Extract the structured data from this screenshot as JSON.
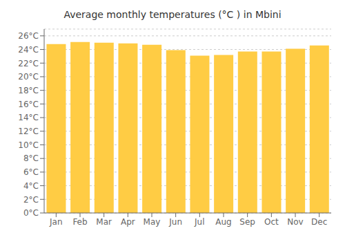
{
  "chart_data": {
    "type": "bar",
    "title": "Average monthly temperatures (°C ) in Mbini",
    "categories": [
      "Jan",
      "Feb",
      "Mar",
      "Apr",
      "May",
      "Jun",
      "Jul",
      "Aug",
      "Sep",
      "Oct",
      "Nov",
      "Dec"
    ],
    "values": [
      24.8,
      25.1,
      25.0,
      24.9,
      24.7,
      23.9,
      23.1,
      23.2,
      23.7,
      23.7,
      24.1,
      24.6
    ],
    "color": "#FFCC44",
    "ylim": [
      0,
      27
    ],
    "yticks": [
      {
        "value": 0,
        "label": "0°C"
      },
      {
        "value": 2,
        "label": "2°C"
      },
      {
        "value": 4,
        "label": "4°C"
      },
      {
        "value": 6,
        "label": "6°C"
      },
      {
        "value": 8,
        "label": "8°C"
      },
      {
        "value": 10,
        "label": "10°C"
      },
      {
        "value": 12,
        "label": "12°C"
      },
      {
        "value": 14,
        "label": "14°C"
      },
      {
        "value": 16,
        "label": "16°C"
      },
      {
        "value": 18,
        "label": "18°C"
      },
      {
        "value": 20,
        "label": "20°C"
      },
      {
        "value": 22,
        "label": "22°C"
      },
      {
        "value": 24,
        "label": "24°C"
      },
      {
        "value": 26,
        "label": "26°C"
      }
    ],
    "grid": true
  }
}
